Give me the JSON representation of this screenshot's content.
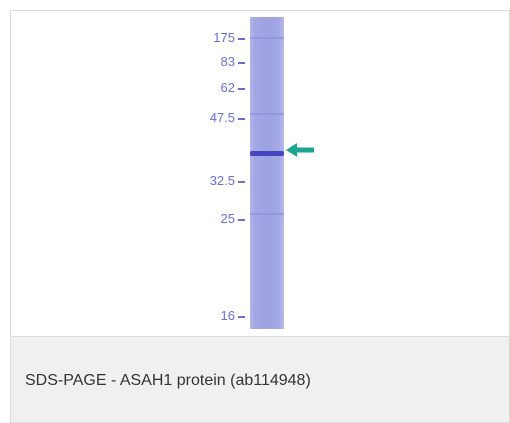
{
  "figure": {
    "markers": [
      {
        "label": "175"
      },
      {
        "label": "83"
      },
      {
        "label": "62"
      },
      {
        "label": "47.5"
      },
      {
        "label": "32.5"
      },
      {
        "label": "25"
      },
      {
        "label": "16"
      }
    ],
    "caption": "SDS-PAGE - ASAH1 protein (ab114948)",
    "colors": {
      "gel_lane": "#a0a4e3",
      "band": "#4446c0",
      "marker_text": "#6b6fd2",
      "arrow": "#1aa58e"
    },
    "arrow_icon": "left-arrow-icon"
  }
}
